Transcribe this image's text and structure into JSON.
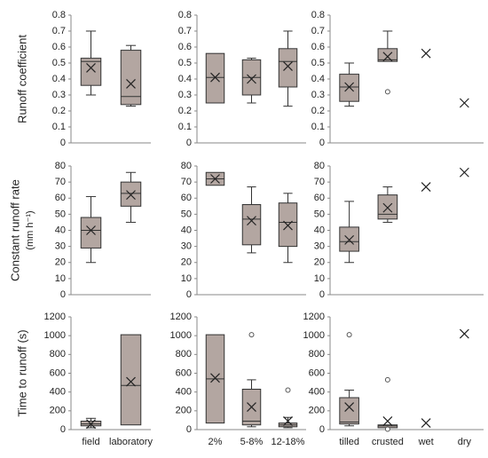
{
  "chart_data": [
    {
      "type": "box",
      "ylabel": "Runoff coefficient",
      "ylim": [
        0,
        0.8
      ],
      "yticks": [
        0,
        0.1,
        0.2,
        0.3,
        0.4,
        0.5,
        0.6,
        0.7,
        0.8
      ],
      "boxes": [
        {
          "min": 0.3,
          "q1": 0.36,
          "median": 0.51,
          "q3": 0.53,
          "max": 0.7,
          "mean": 0.47
        },
        {
          "min": 0.23,
          "q1": 0.24,
          "median": 0.29,
          "q3": 0.58,
          "max": 0.61,
          "mean": 0.37
        }
      ]
    },
    {
      "type": "box",
      "ylim": [
        0,
        0.8
      ],
      "yticks": [
        0,
        0.1,
        0.2,
        0.3,
        0.4,
        0.5,
        0.6,
        0.7,
        0.8
      ],
      "boxes": [
        {
          "q1": 0.25,
          "median": 0.41,
          "q3": 0.56,
          "mean": 0.41
        },
        {
          "min": 0.25,
          "q1": 0.3,
          "median": 0.41,
          "q3": 0.52,
          "max": 0.53,
          "mean": 0.4
        },
        {
          "min": 0.23,
          "q1": 0.35,
          "median": 0.51,
          "q3": 0.59,
          "max": 0.7,
          "mean": 0.48
        }
      ]
    },
    {
      "type": "box",
      "ylim": [
        0,
        0.8
      ],
      "yticks": [
        0,
        0.1,
        0.2,
        0.3,
        0.4,
        0.5,
        0.6,
        0.7,
        0.8
      ],
      "boxes": [
        {
          "min": 0.23,
          "q1": 0.26,
          "median": 0.35,
          "q3": 0.43,
          "max": 0.5,
          "mean": 0.35
        },
        {
          "q1": 0.51,
          "median": 0.52,
          "q3": 0.59,
          "max": 0.7,
          "mean": 0.54,
          "outliers": [
            0.32
          ]
        },
        {
          "mean": 0.56
        },
        {
          "mean": 0.25
        }
      ]
    },
    {
      "type": "box",
      "ylabel": "Constant runoff rate",
      "ylabel2": "(mm h⁻¹)",
      "ylim": [
        0,
        80
      ],
      "yticks": [
        0,
        10,
        20,
        30,
        40,
        50,
        60,
        70,
        80
      ],
      "boxes": [
        {
          "min": 20,
          "q1": 29,
          "median": 40,
          "q3": 48,
          "max": 61,
          "mean": 40
        },
        {
          "min": 45,
          "q1": 55,
          "median": 63,
          "q3": 70,
          "max": 76,
          "mean": 62
        }
      ]
    },
    {
      "type": "box",
      "ylim": [
        0,
        80
      ],
      "yticks": [
        0,
        10,
        20,
        30,
        40,
        50,
        60,
        70,
        80
      ],
      "boxes": [
        {
          "q1": 68,
          "median": 72,
          "q3": 76,
          "mean": 72
        },
        {
          "min": 26,
          "q1": 31,
          "median": 47,
          "q3": 56,
          "max": 67,
          "mean": 46
        },
        {
          "min": 20,
          "q1": 30,
          "median": 45,
          "q3": 57,
          "max": 63,
          "mean": 43
        }
      ]
    },
    {
      "type": "box",
      "ylim": [
        0,
        80
      ],
      "yticks": [
        0,
        10,
        20,
        30,
        40,
        50,
        60,
        70,
        80
      ],
      "boxes": [
        {
          "min": 20,
          "q1": 27,
          "median": 33,
          "q3": 42,
          "max": 58,
          "mean": 34
        },
        {
          "min": 45,
          "q1": 47,
          "median": 50,
          "q3": 62,
          "max": 67,
          "mean": 54
        },
        {
          "mean": 67
        },
        {
          "mean": 76
        }
      ]
    },
    {
      "type": "box",
      "ylabel": "Time to runoff (s)",
      "ylim": [
        0,
        1200
      ],
      "yticks": [
        0,
        200,
        400,
        600,
        800,
        1000,
        1200
      ],
      "categories": [
        "field",
        "laboratory"
      ],
      "boxes": [
        {
          "min": 20,
          "q1": 40,
          "median": 60,
          "q3": 90,
          "max": 120,
          "mean": 60
        },
        {
          "q1": 50,
          "median": 470,
          "q3": 1010,
          "mean": 510
        }
      ]
    },
    {
      "type": "box",
      "ylim": [
        0,
        1200
      ],
      "yticks": [
        0,
        200,
        400,
        600,
        800,
        1000,
        1200
      ],
      "categories": [
        "2%",
        "5-8%",
        "12-18%"
      ],
      "boxes": [
        {
          "q1": 70,
          "median": 540,
          "q3": 1010,
          "mean": 550
        },
        {
          "min": 30,
          "q1": 50,
          "median": 90,
          "q3": 430,
          "max": 530,
          "mean": 240,
          "outliers": [
            1010
          ]
        },
        {
          "min": 20,
          "q1": 30,
          "median": 50,
          "q3": 70,
          "max": 130,
          "mean": 90,
          "outliers": [
            420
          ]
        }
      ]
    },
    {
      "type": "box",
      "ylim": [
        0,
        1200
      ],
      "yticks": [
        0,
        200,
        400,
        600,
        800,
        1000,
        1200
      ],
      "categories": [
        "tilled",
        "crusted",
        "wet",
        "dry"
      ],
      "boxes": [
        {
          "min": 40,
          "q1": 60,
          "median": 80,
          "q3": 340,
          "max": 420,
          "mean": 240,
          "outliers": [
            1010
          ]
        },
        {
          "q1": 20,
          "median": 40,
          "q3": 50,
          "mean": 90,
          "outliers": [
            530,
            5
          ]
        },
        {
          "mean": 70
        },
        {
          "mean": 1020
        }
      ]
    }
  ]
}
